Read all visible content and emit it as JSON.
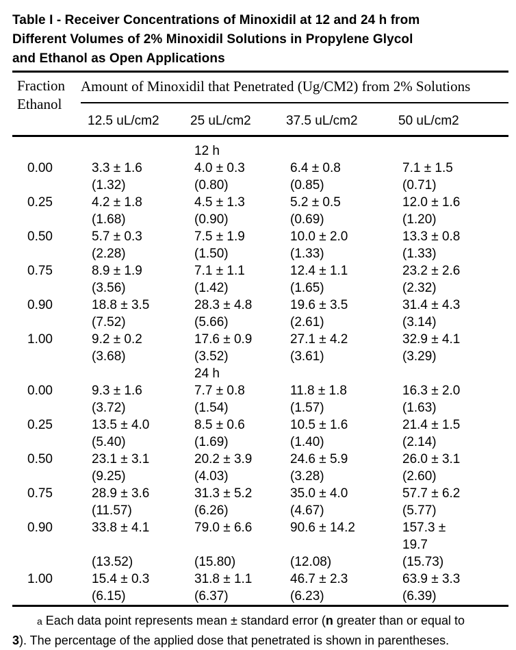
{
  "colors": {
    "text": "#000000",
    "background": "#ffffff",
    "rule": "#000000"
  },
  "title": "Table I - Receiver Concentrations of Minoxidil at 12 and 24 h from\nDifferent Volumes of 2% Minoxidil Solutions in Propylene Glycol\nand Ethanol as Open Applications",
  "table": {
    "row_header": {
      "line1": "Fraction",
      "line2": "Ethanol"
    },
    "span_header": "Amount of Minoxidil that Penetrated (Ug/CM2) from 2% Solutions",
    "columns": [
      "12.5 uL/cm2",
      "25 uL/cm2",
      "37.5 uL/cm2",
      "50 uL/cm2"
    ],
    "sections": [
      {
        "label": "12 h",
        "rows": [
          {
            "fraction": "0.00",
            "cells": [
              {
                "value": "3.3 ± 1.6",
                "percent": "(1.32)"
              },
              {
                "value": "4.0 ± 0.3",
                "percent": "(0.80)"
              },
              {
                "value": "6.4 ± 0.8",
                "percent": "(0.85)"
              },
              {
                "value": "7.1 ± 1.5",
                "percent": "(0.71)"
              }
            ]
          },
          {
            "fraction": "0.25",
            "cells": [
              {
                "value": "4.2 ± 1.8",
                "percent": "(1.68)"
              },
              {
                "value": "4.5 ± 1.3",
                "percent": "(0.90)"
              },
              {
                "value": "5.2 ± 0.5",
                "percent": "(0.69)"
              },
              {
                "value": "12.0 ± 1.6",
                "percent": "(1.20)"
              }
            ]
          },
          {
            "fraction": "0.50",
            "cells": [
              {
                "value": "5.7 ± 0.3",
                "percent": "(2.28)"
              },
              {
                "value": "7.5 ± 1.9",
                "percent": "(1.50)"
              },
              {
                "value": "10.0 ± 2.0",
                "percent": "(1.33)"
              },
              {
                "value": "13.3 ± 0.8",
                "percent": "(1.33)"
              }
            ]
          },
          {
            "fraction": "0.75",
            "cells": [
              {
                "value": "8.9 ± 1.9",
                "percent": "(3.56)"
              },
              {
                "value": "7.1 ± 1.1",
                "percent": "(1.42)"
              },
              {
                "value": "12.4 ± 1.1",
                "percent": "(1.65)"
              },
              {
                "value": "23.2 ± 2.6",
                "percent": "(2.32)"
              }
            ]
          },
          {
            "fraction": "0.90",
            "cells": [
              {
                "value": "18.8 ± 3.5",
                "percent": "(7.52)"
              },
              {
                "value": "28.3 ± 4.8",
                "percent": "(5.66)"
              },
              {
                "value": "19.6 ± 3.5",
                "percent": "(2.61)"
              },
              {
                "value": "31.4 ± 4.3",
                "percent": "(3.14)"
              }
            ]
          },
          {
            "fraction": "1.00",
            "cells": [
              {
                "value": "9.2 ± 0.2",
                "percent": "(3.68)"
              },
              {
                "value": "17.6 ± 0.9",
                "percent": "(3.52)"
              },
              {
                "value": "27.1 ± 4.2",
                "percent": "(3.61)"
              },
              {
                "value": "32.9 ± 4.1",
                "percent": "(3.29)"
              }
            ]
          }
        ]
      },
      {
        "label": "24 h",
        "rows": [
          {
            "fraction": "0.00",
            "cells": [
              {
                "value": "9.3 ± 1.6",
                "percent": "(3.72)"
              },
              {
                "value": "7.7 ± 0.8",
                "percent": "(1.54)"
              },
              {
                "value": "11.8 ± 1.8",
                "percent": "(1.57)"
              },
              {
                "value": "16.3 ± 2.0",
                "percent": "(1.63)"
              }
            ]
          },
          {
            "fraction": "0.25",
            "cells": [
              {
                "value": "13.5 ± 4.0",
                "percent": "(5.40)"
              },
              {
                "value": "8.5 ± 0.6",
                "percent": "(1.69)"
              },
              {
                "value": "10.5 ± 1.6",
                "percent": "(1.40)"
              },
              {
                "value": "21.4 ± 1.5",
                "percent": "(2.14)"
              }
            ]
          },
          {
            "fraction": "0.50",
            "cells": [
              {
                "value": "23.1 ± 3.1",
                "percent": "(9.25)"
              },
              {
                "value": "20.2 ± 3.9",
                "percent": "(4.03)"
              },
              {
                "value": "24.6 ± 5.9",
                "percent": "(3.28)"
              },
              {
                "value": "26.0 ± 3.1",
                "percent": "(2.60)"
              }
            ]
          },
          {
            "fraction": "0.75",
            "cells": [
              {
                "value": "28.9 ± 3.6",
                "percent": "(11.57)"
              },
              {
                "value": "31.3 ± 5.2",
                "percent": "(6.26)"
              },
              {
                "value": "35.0 ± 4.0",
                "percent": "(4.67)"
              },
              {
                "value": "57.7 ± 6.2",
                "percent": "(5.77)"
              }
            ]
          },
          {
            "fraction": "0.90",
            "cells": [
              {
                "value": "33.8 ± 4.1",
                "percent": "(13.52)"
              },
              {
                "value": "79.0 ± 6.6",
                "percent": "(15.80)"
              },
              {
                "value": "90.6 ± 14.2",
                "percent": "(12.08)"
              },
              {
                "value": "157.3 ±\n19.7",
                "percent": "(15.73)"
              }
            ]
          },
          {
            "fraction": "1.00",
            "cells": [
              {
                "value": "15.4 ± 0.3",
                "percent": "(6.15)"
              },
              {
                "value": "31.8 ± 1.1",
                "percent": "(6.37)"
              },
              {
                "value": "46.7 ± 2.3",
                "percent": "(6.23)"
              },
              {
                "value": "63.9 ± 3.3",
                "percent": "(6.39)"
              }
            ]
          }
        ]
      }
    ]
  },
  "footnote": {
    "marker": "a",
    "segments": [
      {
        "text": "Each data point represents mean ± standard error (",
        "bold": false
      },
      {
        "text": "n",
        "bold": true
      },
      {
        "text": " greater than or equal to\n",
        "bold": false
      },
      {
        "text": "3",
        "bold": true
      },
      {
        "text": "). The percentage of the applied dose that penetrated is shown in parentheses.",
        "bold": false
      }
    ]
  }
}
